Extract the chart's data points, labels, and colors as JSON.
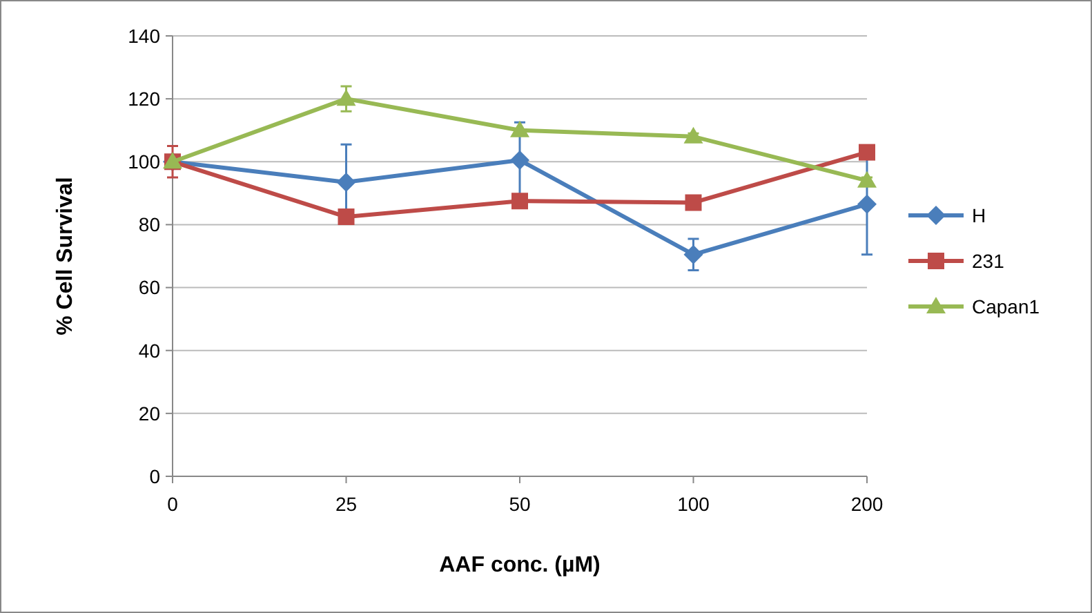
{
  "chart_data": {
    "type": "line",
    "xlabel": "AAF conc. (µM)",
    "ylabel": "% Cell Survival",
    "categories": [
      "0",
      "25",
      "50",
      "100",
      "200"
    ],
    "ylim": [
      0,
      140
    ],
    "yticks": [
      0,
      20,
      40,
      60,
      80,
      100,
      120,
      140
    ],
    "grid": "y",
    "legend": "right",
    "series": [
      {
        "name": "H",
        "color": "#4a7ebb",
        "marker": "diamond",
        "values": [
          100,
          93.5,
          100.5,
          70.5,
          86.5
        ],
        "errors": [
          null,
          12,
          12,
          5,
          16
        ]
      },
      {
        "name": "231",
        "color": "#be4b48",
        "marker": "square",
        "values": [
          100,
          82.5,
          87.5,
          87,
          103
        ],
        "errors": [
          5,
          null,
          null,
          null,
          null
        ]
      },
      {
        "name": "Capan1",
        "color": "#98b954",
        "marker": "triangle",
        "values": [
          100,
          120,
          110,
          108,
          94
        ],
        "errors": [
          null,
          4,
          null,
          1,
          1
        ]
      }
    ]
  }
}
